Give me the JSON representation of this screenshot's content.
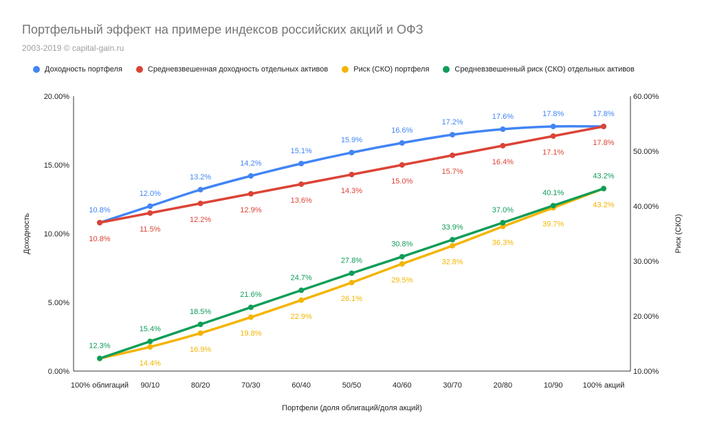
{
  "chart_data": {
    "type": "line",
    "title": "Портфельный эффект на примере индексов российских акций и ОФЗ",
    "subtitle": "2003-2019 © capital-gain.ru",
    "xlabel": "Портфели (доля облигаций/доля акций)",
    "ylabel": "Доходность",
    "y2label": "Риск (СКО)",
    "categories": [
      "100% облигаций",
      "90/10",
      "80/20",
      "70/30",
      "60/40",
      "50/50",
      "40/60",
      "30/70",
      "20/80",
      "10/90",
      "100% акций"
    ],
    "ylim": [
      0,
      20
    ],
    "y2lim": [
      10,
      60
    ],
    "y_ticks": [
      "0.00%",
      "5.00%",
      "10.00%",
      "15.00%",
      "20.00%"
    ],
    "y2_ticks": [
      "10.00%",
      "20.00%",
      "30.00%",
      "40.00%",
      "50.00%",
      "60.00%"
    ],
    "legend_position": "top",
    "grid": false,
    "series": [
      {
        "name": "Доходность портфеля",
        "axis": "left",
        "color": "#4285f4",
        "label_pos": "above",
        "values": [
          10.8,
          12.0,
          13.2,
          14.2,
          15.1,
          15.9,
          16.6,
          17.2,
          17.6,
          17.8,
          17.8
        ],
        "labels": [
          "10.8%",
          "12.0%",
          "13.2%",
          "14.2%",
          "15.1%",
          "15.9%",
          "16.6%",
          "17.2%",
          "17.6%",
          "17.8%",
          "17.8%"
        ]
      },
      {
        "name": "Средневзвешенная доходность отдельных активов",
        "axis": "left",
        "color": "#db4437",
        "label_pos": "below",
        "values": [
          10.8,
          11.5,
          12.2,
          12.9,
          13.6,
          14.3,
          15.0,
          15.7,
          16.4,
          17.1,
          17.8
        ],
        "labels": [
          "10.8%",
          "11.5%",
          "12.2%",
          "12.9%",
          "13.6%",
          "14.3%",
          "15.0%",
          "15.7%",
          "16.4%",
          "17.1%",
          "17.8%"
        ]
      },
      {
        "name": "Риск (СКО) портфеля",
        "axis": "right",
        "color": "#f4b400",
        "label_pos": "below",
        "values": [
          12.3,
          14.4,
          16.9,
          19.8,
          22.9,
          26.1,
          29.5,
          32.8,
          36.3,
          39.7,
          43.2
        ],
        "labels": [
          "",
          "14.4%",
          "16.9%",
          "19.8%",
          "22.9%",
          "26.1%",
          "29.5%",
          "32.8%",
          "36.3%",
          "39.7%",
          "43.2%"
        ]
      },
      {
        "name": "Средневзвешенный риск (СКО) отдельных активов",
        "axis": "right",
        "color": "#0f9d58",
        "label_pos": "above",
        "values": [
          12.3,
          15.4,
          18.5,
          21.6,
          24.7,
          27.8,
          30.8,
          33.9,
          37.0,
          40.1,
          43.2
        ],
        "labels": [
          "12.3%",
          "15.4%",
          "18.5%",
          "21.6%",
          "24.7%",
          "27.8%",
          "30.8%",
          "33.9%",
          "37.0%",
          "40.1%",
          "43.2%"
        ]
      }
    ]
  }
}
